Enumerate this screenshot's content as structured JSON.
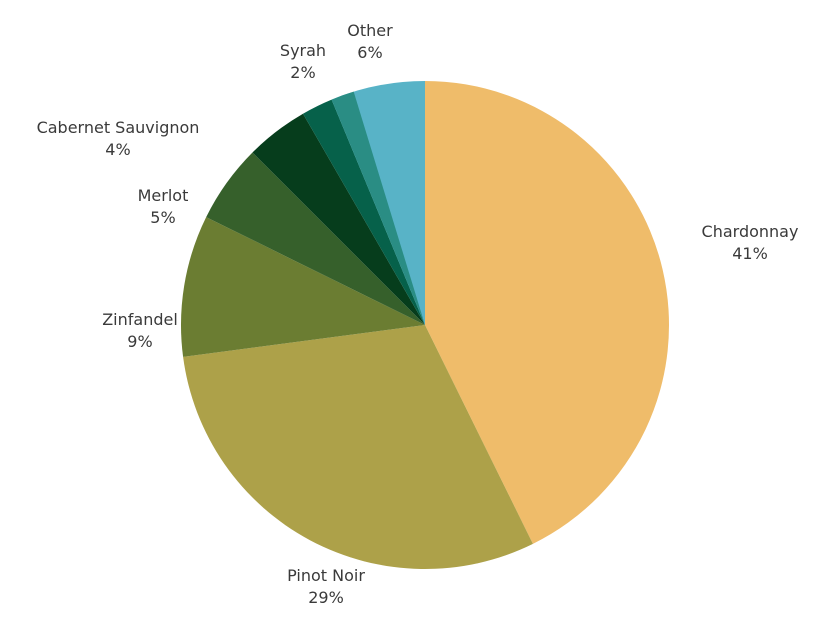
{
  "chart_data": {
    "type": "pie",
    "title": "",
    "legend": "none",
    "start_angle": "12 o'clock",
    "direction": "clockwise",
    "slices": [
      {
        "label": "Chardonnay",
        "value": 41,
        "value_label": "41%",
        "color": "#EFBC6A"
      },
      {
        "label": "Pinot Noir",
        "value": 29,
        "value_label": "29%",
        "color": "#ADA149"
      },
      {
        "label": "Zinfandel",
        "value": 9,
        "value_label": "9%",
        "color": "#6B7D32"
      },
      {
        "label": "Merlot",
        "value": 5,
        "value_label": "5%",
        "color": "#36602B"
      },
      {
        "label": "Cabernet Sauvignon",
        "value": 4,
        "value_label": "4%",
        "color": "#063D1C"
      },
      {
        "label": "Syrah",
        "value": 2,
        "value_label": "2%",
        "color": "#06614A"
      },
      {
        "label": "Other",
        "value": 6,
        "value_label": "6%",
        "color": "#58B3C7"
      }
    ],
    "extra_slice_color": "#2A8D84"
  }
}
